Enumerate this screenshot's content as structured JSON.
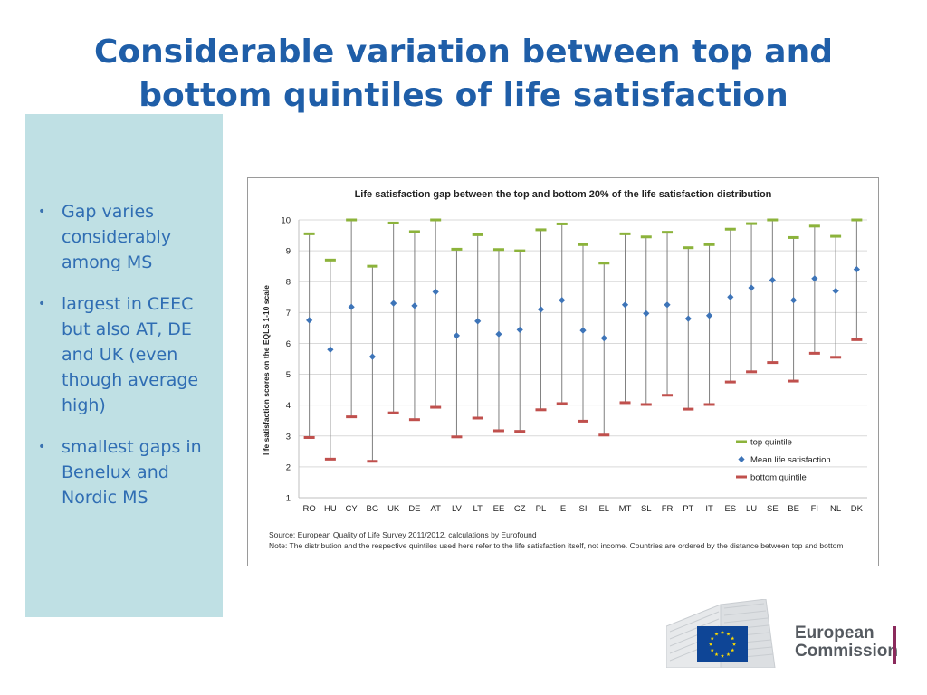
{
  "slide": {
    "title_line1": "Considerable variation between top and",
    "title_line2": "bottom quintiles of life satisfaction"
  },
  "bullets": [
    {
      "text": "Gap varies considerably among MS"
    },
    {
      "text": "largest in CEEC but also AT, DE and UK (even though average high)"
    },
    {
      "text": "smallest gaps in Benelux and Nordic MS"
    }
  ],
  "colors": {
    "title": "#1f5ea8",
    "panel": "#bfe0e4",
    "top_quintile": "#8cb33b",
    "mean": "#3d74b8",
    "bottom_quintile": "#c0504d"
  },
  "chart_data": {
    "type": "scatter",
    "title": "Life satisfaction gap between the top and bottom 20% of the life satisfaction distribution",
    "ylabel": "life satisfaction scores on the EQLS 1-10 scale",
    "xlabel": "",
    "ylim": [
      1,
      10
    ],
    "yticks": [
      "1",
      "2",
      "3",
      "4",
      "5",
      "6",
      "7",
      "8",
      "9",
      "10"
    ],
    "grid": true,
    "legend_position": "bottom-right",
    "categories": [
      "RO",
      "HU",
      "CY",
      "BG",
      "UK",
      "DE",
      "AT",
      "LV",
      "LT",
      "EE",
      "CZ",
      "PL",
      "IE",
      "SI",
      "EL",
      "MT",
      "SL",
      "FR",
      "PT",
      "IT",
      "ES",
      "LU",
      "SE",
      "BE",
      "FI",
      "NL",
      "DK"
    ],
    "series": [
      {
        "name": "top quintile",
        "values": [
          9.55,
          8.7,
          10.0,
          8.5,
          9.9,
          9.62,
          10.0,
          9.05,
          9.52,
          9.04,
          9.0,
          9.68,
          9.87,
          9.2,
          8.6,
          9.55,
          9.45,
          9.6,
          9.1,
          9.2,
          9.7,
          9.88,
          10.0,
          9.43,
          9.8,
          9.47,
          10.0
        ]
      },
      {
        "name": "Mean life satisfaction",
        "values": [
          6.75,
          5.8,
          7.18,
          5.57,
          7.3,
          7.22,
          7.67,
          6.25,
          6.72,
          6.3,
          6.44,
          7.1,
          7.4,
          6.42,
          6.17,
          7.25,
          6.97,
          7.25,
          6.8,
          6.9,
          7.5,
          7.8,
          8.05,
          7.4,
          8.1,
          7.7,
          8.4
        ]
      },
      {
        "name": "bottom quintile",
        "values": [
          2.95,
          2.25,
          3.62,
          2.18,
          3.75,
          3.53,
          3.93,
          2.97,
          3.58,
          3.17,
          3.15,
          3.85,
          4.05,
          3.48,
          3.03,
          4.08,
          4.02,
          4.32,
          3.87,
          4.02,
          4.75,
          5.08,
          5.38,
          4.78,
          5.68,
          5.55,
          6.12
        ]
      }
    ],
    "source_line1": "Source: European Quality of Life Survey 2011/2012, calculations by Eurofound",
    "source_line2": "Note: The distribution and the respective quintiles used here refer to the life satisfaction itself, not income.  Countries are ordered by the distance between top and bottom"
  },
  "logo": {
    "line1": "European",
    "line2": "Commission"
  }
}
